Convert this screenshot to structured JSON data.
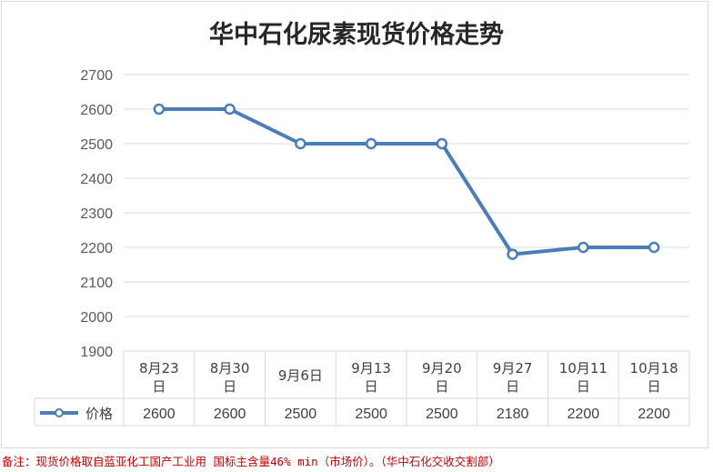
{
  "chart_data": {
    "type": "line",
    "title": "华中石化尿素现货价格走势",
    "categories": [
      "8月23日",
      "8月30日",
      "9月6日",
      "9月13日",
      "9月20日",
      "9月27日",
      "10月11日",
      "10月18日"
    ],
    "series": [
      {
        "name": "价格",
        "values": [
          2600,
          2600,
          2500,
          2500,
          2500,
          2180,
          2200,
          2200
        ]
      }
    ],
    "ylim": [
      1900,
      2700
    ],
    "yticks": [
      1900,
      2000,
      2100,
      2200,
      2300,
      2400,
      2500,
      2600,
      2700
    ],
    "grid": true,
    "legend_placement": "data-table-left",
    "series_color": "#4a7ebb"
  },
  "footnote": "备注：现货价格取自蓝亚化工国产工业用 国标主含量46% min（市场价）。（华中石化交收交割部）"
}
